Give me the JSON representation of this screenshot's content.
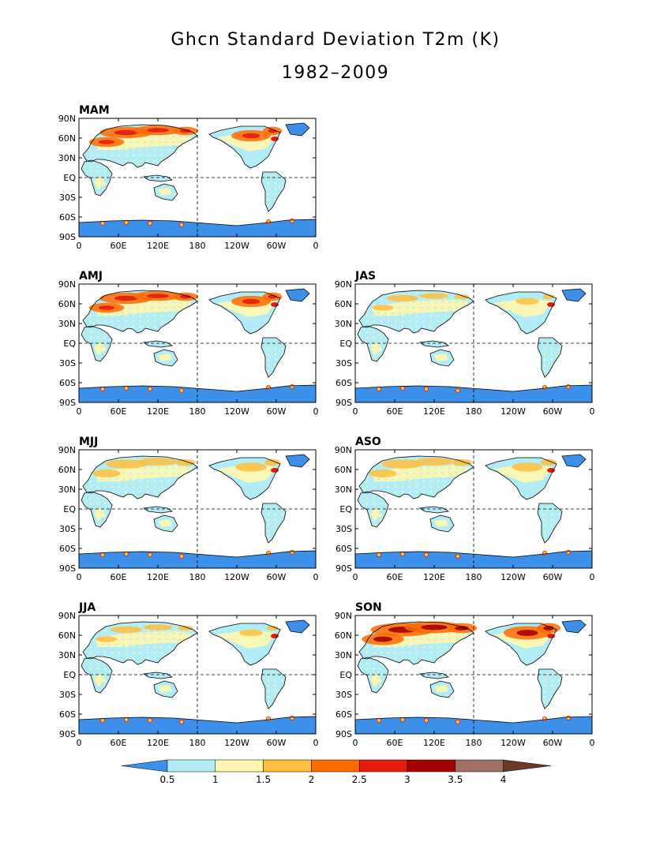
{
  "title": "Ghcn Standard Deviation T2m (K)",
  "subtitle": "1982–2009",
  "lat_labels": [
    "90N",
    "60N",
    "30N",
    "EQ",
    "30S",
    "60S",
    "90S"
  ],
  "lon_labels": [
    "0",
    "60E",
    "120E",
    "180",
    "120W",
    "60W",
    "0"
  ],
  "panels": [
    {
      "label": "MAM",
      "intensity": 3
    },
    {
      "label": "AMJ",
      "intensity": 3
    },
    {
      "label": "JAS",
      "intensity": 1
    },
    {
      "label": "MJJ",
      "intensity": 2
    },
    {
      "label": "ASO",
      "intensity": 2
    },
    {
      "label": "JJA",
      "intensity": 1
    },
    {
      "label": "SON",
      "intensity": 4
    }
  ],
  "colorbar": {
    "ticks": [
      "0.5",
      "1",
      "1.5",
      "2",
      "2.5",
      "3",
      "3.5",
      "4"
    ],
    "colors": [
      "#3d90ea",
      "#b2edf7",
      "#fff7ad",
      "#ffbe3d",
      "#ff6a00",
      "#e51b0c",
      "#a60000",
      "#9e7164",
      "#6b3a27"
    ]
  }
}
